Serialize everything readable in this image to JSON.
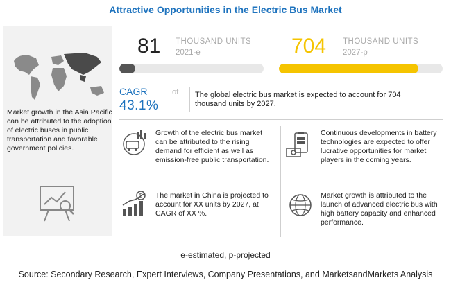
{
  "title": "Attractive Opportunities in the Electric Bus Market",
  "left_panel": {
    "text": "Market growth in the Asia Pacific can be attributed to the adoption of electric buses in public transportation and favorable government policies."
  },
  "metrics": [
    {
      "value": "81",
      "unit": "THOUSAND UNITS",
      "year": "2021-e",
      "bar_fraction": 0.11,
      "bar_color": "#555555"
    },
    {
      "value": "704",
      "unit": "THOUSAND UNITS",
      "year": "2027-p",
      "bar_fraction": 0.85,
      "bar_color": "#f5c400"
    }
  ],
  "cagr": {
    "label": "CAGR",
    "of": "of",
    "value": "43.1%",
    "description": "The global electric bus market is expected to account for 704 thousand units by 2027."
  },
  "points": [
    {
      "icon": "bus-chart-icon",
      "text": "Growth of the electric bus market can be attributed to the rising demand for efficient as well as emission-free public transportation."
    },
    {
      "icon": "battery-money-icon",
      "text": "Continuous developments in battery technologies are expected to offer lucrative opportunities for market players in the coming years."
    },
    {
      "icon": "dollar-growth-icon",
      "text": "The market in China is projected to account for XX units by 2027, at CAGR of XX %."
    },
    {
      "icon": "globe-icon",
      "text": "Market growth is attributed to the launch of advanced electric bus with high battery capacity and enhanced performance."
    }
  ],
  "footnote": "e-estimated, p-projected",
  "source": "Source: Secondary Research, Expert Interviews, Company Presentations, and MarketsandMarkets Analysis",
  "colors": {
    "accent": "#1e73be",
    "highlight": "#f5c400",
    "dark_bar": "#555555",
    "panel": "#f2f2f2"
  }
}
